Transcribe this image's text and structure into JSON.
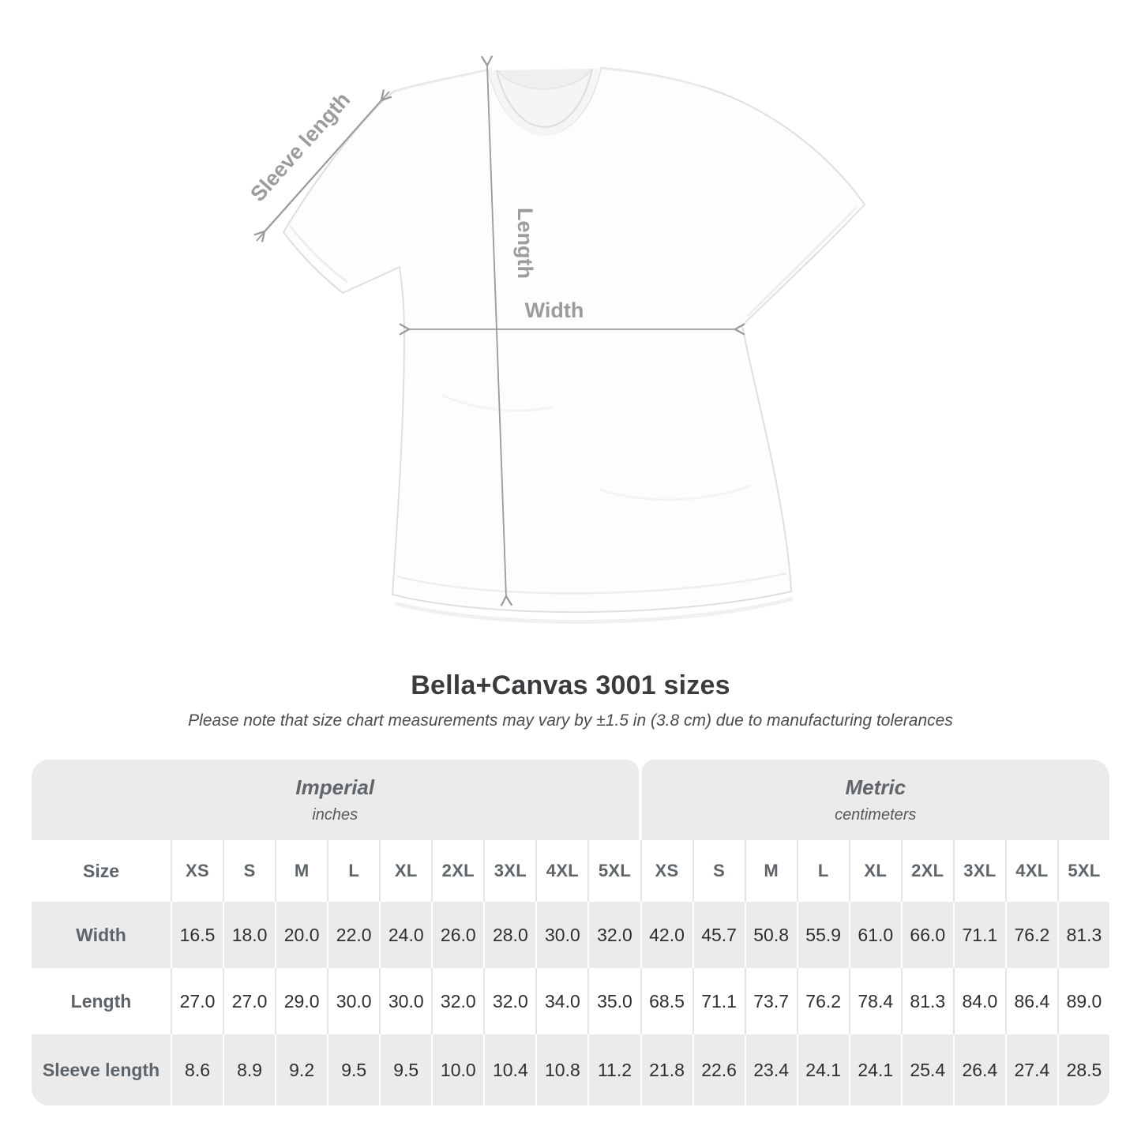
{
  "title": "Bella+Canvas 3001 sizes",
  "subtitle": "Please note that size chart measurements may vary by ±1.5 in (3.8 cm) due to manufacturing tolerances",
  "diagram": {
    "sleeve_label": "Sleeve length",
    "length_label": "Length",
    "width_label": "Width",
    "arrow_color": "#9a9a9a",
    "label_color": "#9c9c9c"
  },
  "table": {
    "size_label": "Size",
    "unit_groups": [
      {
        "name": "Imperial",
        "unit": "inches"
      },
      {
        "name": "Metric",
        "unit": "centimeters"
      }
    ],
    "sizes": [
      "XS",
      "S",
      "M",
      "L",
      "XL",
      "2XL",
      "3XL",
      "4XL",
      "5XL"
    ],
    "rows": [
      {
        "label": "Width",
        "imperial": [
          "16.5",
          "18.0",
          "20.0",
          "22.0",
          "24.0",
          "26.0",
          "28.0",
          "30.0",
          "32.0"
        ],
        "metric": [
          "42.0",
          "45.7",
          "50.8",
          "55.9",
          "61.0",
          "66.0",
          "71.1",
          "76.2",
          "81.3"
        ]
      },
      {
        "label": "Length",
        "imperial": [
          "27.0",
          "27.0",
          "29.0",
          "30.0",
          "30.0",
          "32.0",
          "32.0",
          "34.0",
          "35.0"
        ],
        "metric": [
          "68.5",
          "71.1",
          "73.7",
          "76.2",
          "78.4",
          "81.3",
          "84.0",
          "86.4",
          "89.0"
        ]
      },
      {
        "label": "Sleeve length",
        "imperial": [
          "8.6",
          "8.9",
          "9.2",
          "9.5",
          "9.5",
          "10.0",
          "10.4",
          "10.8",
          "11.2"
        ],
        "metric": [
          "21.8",
          "22.6",
          "23.4",
          "24.1",
          "24.1",
          "25.4",
          "26.4",
          "27.4",
          "28.5"
        ]
      }
    ],
    "colors": {
      "band": "#ebebeb",
      "separator_on_white": "#e4e4e4",
      "separator_on_gray": "#ffffff",
      "header_text": "#5d646a",
      "value_text": "#2f2f2f"
    }
  },
  "chart_data": {
    "type": "table",
    "title": "Bella+Canvas 3001 sizes",
    "note": "Please note that size chart measurements may vary by ±1.5 in (3.8 cm) due to manufacturing tolerances",
    "columns": [
      "XS",
      "S",
      "M",
      "L",
      "XL",
      "2XL",
      "3XL",
      "4XL",
      "5XL"
    ],
    "rows": [
      {
        "measure": "Width",
        "unit": "in",
        "values": [
          16.5,
          18.0,
          20.0,
          22.0,
          24.0,
          26.0,
          28.0,
          30.0,
          32.0
        ]
      },
      {
        "measure": "Length",
        "unit": "in",
        "values": [
          27.0,
          27.0,
          29.0,
          30.0,
          30.0,
          32.0,
          32.0,
          34.0,
          35.0
        ]
      },
      {
        "measure": "Sleeve length",
        "unit": "in",
        "values": [
          8.6,
          8.9,
          9.2,
          9.5,
          9.5,
          10.0,
          10.4,
          10.8,
          11.2
        ]
      },
      {
        "measure": "Width",
        "unit": "cm",
        "values": [
          42.0,
          45.7,
          50.8,
          55.9,
          61.0,
          66.0,
          71.1,
          76.2,
          81.3
        ]
      },
      {
        "measure": "Length",
        "unit": "cm",
        "values": [
          68.5,
          71.1,
          73.7,
          76.2,
          78.4,
          81.3,
          84.0,
          86.4,
          89.0
        ]
      },
      {
        "measure": "Sleeve length",
        "unit": "cm",
        "values": [
          21.8,
          22.6,
          23.4,
          24.1,
          24.1,
          25.4,
          26.4,
          27.4,
          28.5
        ]
      }
    ]
  }
}
